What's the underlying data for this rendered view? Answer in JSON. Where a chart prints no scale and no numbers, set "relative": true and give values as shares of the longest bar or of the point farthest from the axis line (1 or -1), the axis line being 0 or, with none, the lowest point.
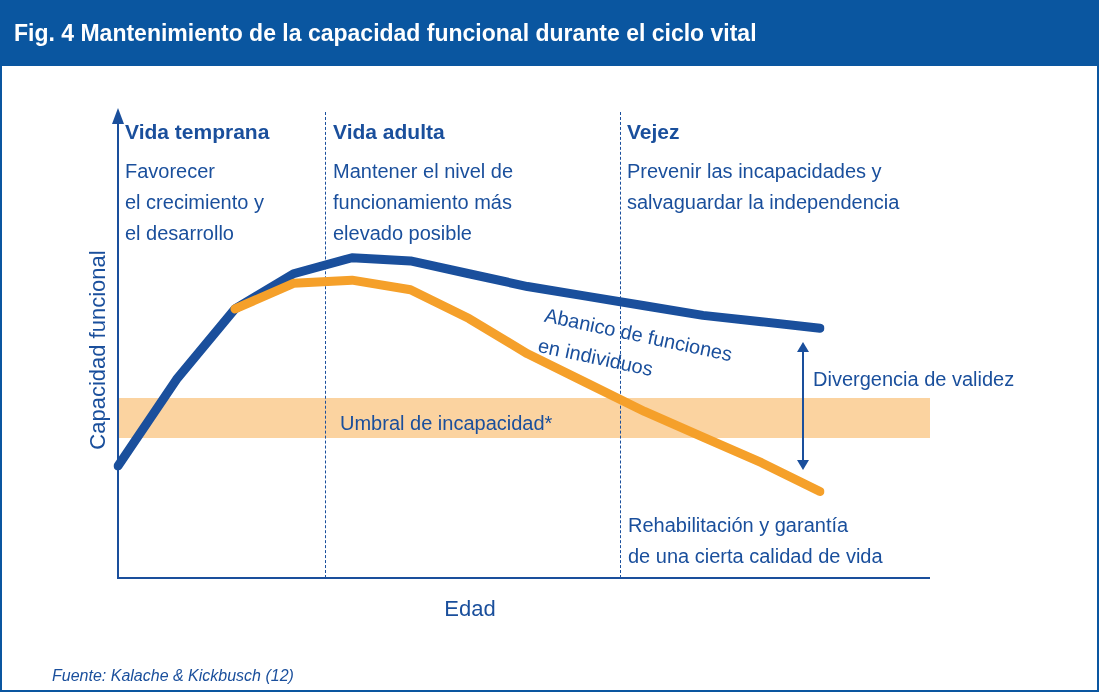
{
  "chart_data": {
    "type": "line",
    "title": "Fig. 4 Mantenimiento de la capacidad funcional durante el ciclo vital",
    "xlabel": "Edad",
    "ylabel": "Capacidad funcional",
    "relative": true,
    "categories": [
      null,
      null,
      null,
      null,
      null,
      null,
      null,
      null,
      null,
      null,
      null,
      null,
      null
    ],
    "legend": false,
    "marker": "none",
    "line_style": "solid",
    "series": [
      {
        "color": "#1a4f9c",
        "values": [
          0.35,
          0.62,
          0.84,
          0.95,
          1.0,
          0.99,
          0.95,
          0.91,
          0.88,
          0.85,
          0.82,
          0.8,
          0.78
        ]
      },
      {
        "color": "#f5a02a",
        "values": [
          null,
          null,
          0.84,
          0.92,
          0.93,
          0.9,
          0.81,
          0.7,
          0.61,
          0.52,
          0.44,
          0.36,
          0.27
        ]
      }
    ],
    "annotations": [
      "Vida temprana",
      "Favorecer\nel crecimiento y\nel desarrollo",
      "Vida adulta",
      "Mantener el nivel de\nfuncionamiento más\nelevado posible",
      "Vejez",
      "Prevenir las incapacidades y\nsalvaguardar la independencia",
      "Abanico de funciones\nen individuos",
      "Divergencia de validez",
      "Rehabilitación y garantía\nde una cierta calidad de vida",
      "Fuente: Kalache & Kickbusch (12)",
      "Umbral de incapacidad*"
    ]
  }
}
